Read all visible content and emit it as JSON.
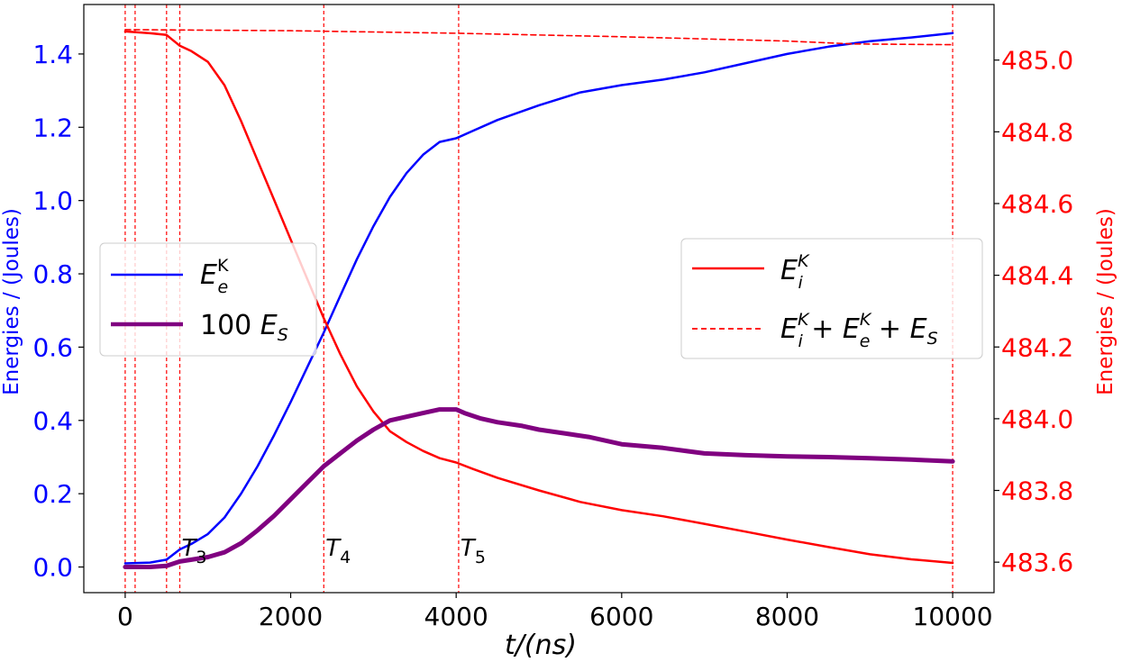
{
  "chart_data": {
    "type": "line",
    "xlabel": "t/(ns)",
    "ylabel_left": "Energies / (Joules)",
    "ylabel_right": "Energies / (Joules)",
    "xlim": [
      -500,
      10500
    ],
    "ylim_left": [
      -0.07,
      1.535
    ],
    "ylim_right": [
      483.515,
      485.155
    ],
    "xticks": [
      0,
      2000,
      4000,
      6000,
      8000,
      10000
    ],
    "yticks_left": [
      0.0,
      0.2,
      0.4,
      0.6,
      0.8,
      1.0,
      1.2,
      1.4
    ],
    "yticks_right": [
      483.6,
      483.8,
      484.0,
      484.2,
      484.4,
      484.6,
      484.8,
      485.0
    ],
    "colors": {
      "left_axis": "#0000ff",
      "right_axis": "#ff0000",
      "ee": "#0000ff",
      "es": "#800080",
      "ei": "#ff0000",
      "total": "#ff0000"
    },
    "vertical_lines": [
      0,
      120,
      500,
      660,
      2400,
      4030,
      10000
    ],
    "markers": [
      {
        "base": "T",
        "sub": "3",
        "x": 660
      },
      {
        "base": "T",
        "sub": "4",
        "x": 2400
      },
      {
        "base": "T",
        "sub": "5",
        "x": 4030
      }
    ],
    "series": [
      {
        "name": "E_e^K",
        "axis": "left",
        "style": "solid",
        "x": [
          0,
          300,
          500,
          660,
          800,
          1000,
          1200,
          1400,
          1600,
          1800,
          2000,
          2200,
          2400,
          2600,
          2800,
          3000,
          3200,
          3400,
          3600,
          3800,
          4000,
          4200,
          4500,
          5000,
          5500,
          6000,
          6500,
          7000,
          7500,
          8000,
          8500,
          9000,
          9500,
          10000
        ],
        "y": [
          0.01,
          0.012,
          0.02,
          0.048,
          0.063,
          0.09,
          0.135,
          0.2,
          0.275,
          0.36,
          0.45,
          0.545,
          0.64,
          0.74,
          0.84,
          0.93,
          1.01,
          1.075,
          1.125,
          1.16,
          1.17,
          1.19,
          1.22,
          1.26,
          1.295,
          1.315,
          1.33,
          1.35,
          1.375,
          1.4,
          1.42,
          1.435,
          1.445,
          1.457
        ]
      },
      {
        "name": "100 E_S",
        "axis": "left",
        "style": "thick",
        "x": [
          0,
          300,
          500,
          660,
          800,
          1000,
          1200,
          1400,
          1600,
          1800,
          2000,
          2200,
          2400,
          2600,
          2800,
          3000,
          3200,
          3400,
          3600,
          3800,
          4000,
          4100,
          4300,
          4500,
          4800,
          5000,
          5300,
          5600,
          6000,
          6500,
          7000,
          7500,
          8000,
          8500,
          9000,
          9500,
          10000
        ],
        "y": [
          0.0,
          0.0,
          0.003,
          0.015,
          0.02,
          0.027,
          0.04,
          0.065,
          0.1,
          0.14,
          0.185,
          0.23,
          0.275,
          0.31,
          0.345,
          0.375,
          0.4,
          0.41,
          0.42,
          0.43,
          0.43,
          0.42,
          0.405,
          0.395,
          0.385,
          0.375,
          0.365,
          0.355,
          0.335,
          0.325,
          0.31,
          0.305,
          0.302,
          0.3,
          0.297,
          0.293,
          0.288
        ]
      },
      {
        "name": "E_i^K",
        "axis": "right",
        "style": "solid",
        "x": [
          0,
          300,
          500,
          660,
          800,
          1000,
          1200,
          1400,
          1600,
          1800,
          2000,
          2200,
          2400,
          2600,
          2800,
          3000,
          3200,
          3400,
          3600,
          3800,
          4000,
          4200,
          4500,
          5000,
          5500,
          6000,
          6500,
          7000,
          7500,
          8000,
          8500,
          9000,
          9500,
          10000
        ],
        "y": [
          485.08,
          485.075,
          485.07,
          485.04,
          485.025,
          484.995,
          484.93,
          484.83,
          484.72,
          484.61,
          484.5,
          484.39,
          484.28,
          484.18,
          484.09,
          484.02,
          483.965,
          483.935,
          483.91,
          483.89,
          483.878,
          483.86,
          483.835,
          483.8,
          483.768,
          483.745,
          483.728,
          483.707,
          483.685,
          483.663,
          483.642,
          483.622,
          483.608,
          483.598
        ]
      },
      {
        "name": "E_i^K + E_e^K + E_S",
        "axis": "right",
        "style": "dashed",
        "x": [
          0,
          2000,
          4000,
          6000,
          8000,
          8800,
          10000
        ],
        "y": [
          485.085,
          485.082,
          485.075,
          485.065,
          485.053,
          485.045,
          485.043
        ]
      }
    ]
  },
  "legend_left": {
    "entries": [
      {
        "label_base": "E",
        "label_sup": "K",
        "label_sub": "e",
        "label_prefix": ""
      },
      {
        "label_base": "E",
        "label_sup": "",
        "label_sub": "S",
        "label_prefix": "100 "
      }
    ]
  },
  "legend_right": {
    "entries": [
      {
        "label_main": "E",
        "label_sup": "K",
        "label_sub": "i"
      },
      {
        "label_main": "E",
        "label_sup": "K",
        "label_sub": "i",
        "label_rest": " + E",
        "label_sup2": "K",
        "label_sub2": "e",
        "label_rest2": " + E",
        "label_sub3": "S"
      }
    ]
  }
}
